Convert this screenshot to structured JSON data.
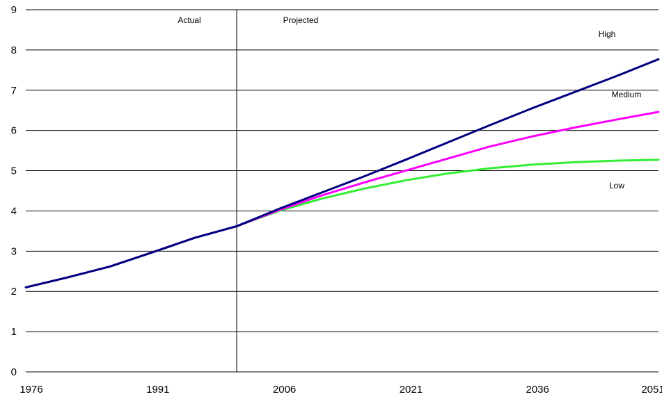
{
  "chart_data": {
    "type": "line",
    "title": "",
    "xlabel": "",
    "ylabel": "",
    "xlim": [
      1976,
      2051
    ],
    "ylim": [
      0,
      9
    ],
    "xticks": [
      1976,
      1991,
      2006,
      2021,
      2036,
      2051
    ],
    "yticks": [
      0,
      1,
      2,
      3,
      4,
      5,
      6,
      7,
      8,
      9
    ],
    "grid": "horizontal",
    "divider_x": 2001,
    "annotations": {
      "actual": "Actual",
      "projected": "Projected"
    },
    "series": [
      {
        "name": "Low",
        "color": "#33EE33",
        "x": [
          1976,
          1981,
          1986,
          1991,
          1996,
          2001,
          2006,
          2011,
          2016,
          2021,
          2026,
          2031,
          2036,
          2041,
          2046,
          2051
        ],
        "values": [
          2.1,
          2.35,
          2.62,
          2.97,
          3.33,
          3.62,
          4.0,
          4.3,
          4.55,
          4.76,
          4.93,
          5.06,
          5.15,
          5.21,
          5.25,
          5.27
        ]
      },
      {
        "name": "Medium",
        "color": "#FF00FF",
        "x": [
          1976,
          1981,
          1986,
          1991,
          1996,
          2001,
          2006,
          2011,
          2016,
          2021,
          2026,
          2031,
          2036,
          2041,
          2046,
          2051
        ],
        "values": [
          2.1,
          2.35,
          2.62,
          2.97,
          3.33,
          3.62,
          4.02,
          4.38,
          4.7,
          5.0,
          5.3,
          5.6,
          5.85,
          6.07,
          6.27,
          6.46
        ]
      },
      {
        "name": "High",
        "color": "#000080",
        "x": [
          1976,
          1981,
          1986,
          1991,
          1996,
          2001,
          2006,
          2011,
          2016,
          2021,
          2026,
          2031,
          2036,
          2041,
          2046,
          2051
        ],
        "values": [
          2.1,
          2.35,
          2.62,
          2.97,
          3.33,
          3.62,
          4.05,
          4.45,
          4.85,
          5.27,
          5.7,
          6.13,
          6.55,
          6.95,
          7.35,
          7.77
        ]
      }
    ]
  }
}
